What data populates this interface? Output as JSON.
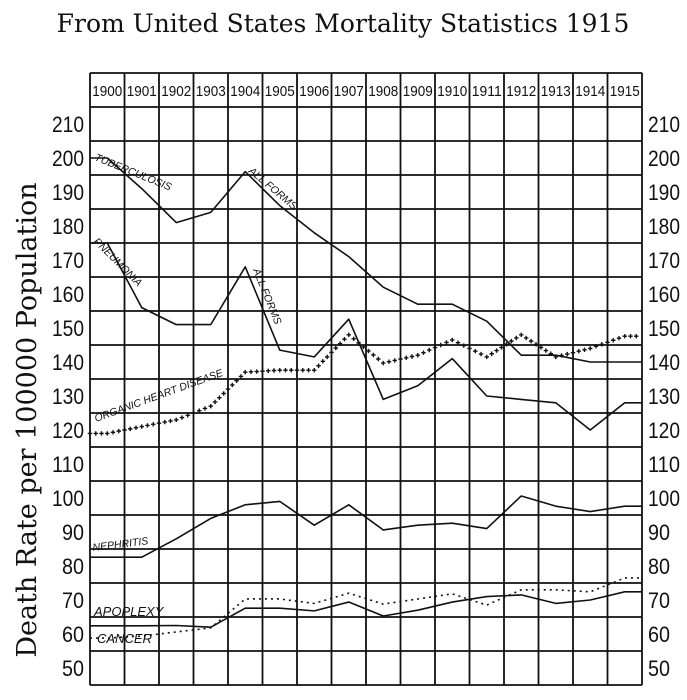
{
  "chart_data": {
    "type": "line",
    "title": "From United States Mortality Statistics 1915",
    "ylabel": "Death Rate per 100000 Population",
    "xlabel": "",
    "categories": [
      "1900",
      "1901",
      "1902",
      "1903",
      "1904",
      "1905",
      "1906",
      "1907",
      "1908",
      "1909",
      "1910",
      "1911",
      "1912",
      "1913",
      "1914",
      "1915"
    ],
    "yticks": [
      210,
      200,
      190,
      180,
      170,
      160,
      150,
      140,
      130,
      120,
      110,
      100,
      90,
      80,
      70,
      60,
      50
    ],
    "ylim": [
      45,
      215
    ],
    "grid": true,
    "legend": "none (labels written along lines)",
    "series": [
      {
        "name": "TUBERCULOSIS",
        "label2": "ALL FORMS",
        "style": "solid",
        "values": [
          200,
          191,
          181,
          184,
          196,
          186,
          178,
          171,
          162,
          157,
          157,
          152,
          142,
          142,
          140,
          140
        ]
      },
      {
        "name": "PNEUMONIA",
        "label2": "ALL FORMS",
        "style": "solid",
        "values": [
          175,
          156,
          151,
          151,
          168,
          143.5,
          141.5,
          152.6,
          129,
          133,
          141,
          130,
          129,
          128,
          120,
          128
        ]
      },
      {
        "name": "ORGANIC HEART DISEASE",
        "style": "crosses",
        "values": [
          119,
          121,
          123,
          127,
          137,
          137.6,
          137.6,
          148,
          139.7,
          142,
          146.5,
          141.5,
          148,
          141.5,
          144,
          147.6
        ]
      },
      {
        "name": "NEPHRITIS",
        "style": "solid",
        "values": [
          82.6,
          82.6,
          88,
          94,
          98,
          99,
          92,
          98,
          90.6,
          92,
          92.6,
          91,
          100.6,
          97.6,
          96,
          97.6
        ]
      },
      {
        "name": "APOPLEXY",
        "style": "solid",
        "values": [
          62.4,
          62.4,
          62.5,
          62,
          67.6,
          67.6,
          66.8,
          69.4,
          65.3,
          67,
          69.4,
          71,
          71.5,
          69,
          70,
          72.4
        ]
      },
      {
        "name": "CANCER",
        "style": "dotted",
        "values": [
          58.8,
          59.4,
          60.6,
          61.8,
          70.3,
          70.3,
          69,
          72,
          68.8,
          70.3,
          71.8,
          68.5,
          73,
          73,
          72.4,
          76.5
        ]
      }
    ],
    "colors": {
      "ink": "#111111",
      "paper": "#ffffff"
    }
  }
}
